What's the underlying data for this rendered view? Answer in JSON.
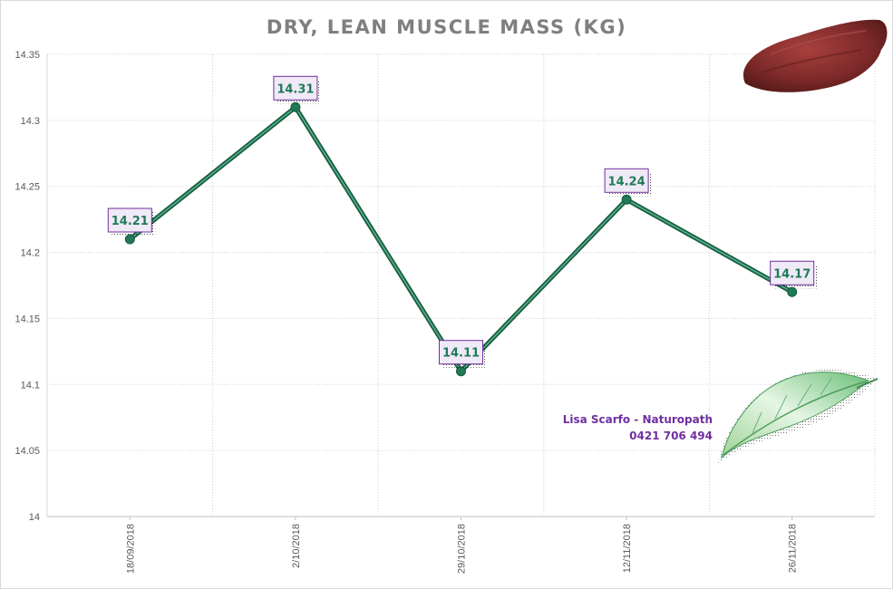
{
  "chart_data": {
    "type": "line",
    "title": "DRY, LEAN MUSCLE MASS (KG)",
    "categories": [
      "18/09/2018",
      "2/10/2018",
      "29/10/2018",
      "12/11/2018",
      "26/11/2018"
    ],
    "series": [
      {
        "values": [
          14.21,
          14.31,
          14.11,
          14.24,
          14.17
        ],
        "color": "#217a56"
      }
    ],
    "data_labels": [
      "14.21",
      "14.31",
      "14.11",
      "14.24",
      "14.17"
    ],
    "y_ticks": [
      "14",
      "14.05",
      "14.1",
      "14.15",
      "14.2",
      "14.25",
      "14.3",
      "14.35"
    ],
    "ylim": [
      14,
      14.35
    ],
    "grid": true,
    "gridline_style": "dotted"
  },
  "annotation": {
    "name": "Lisa Scarfo - Naturopath",
    "phone": "0421 706 494",
    "color": "#7030a0"
  },
  "decorations": [
    "meat-image",
    "leaf-image"
  ]
}
